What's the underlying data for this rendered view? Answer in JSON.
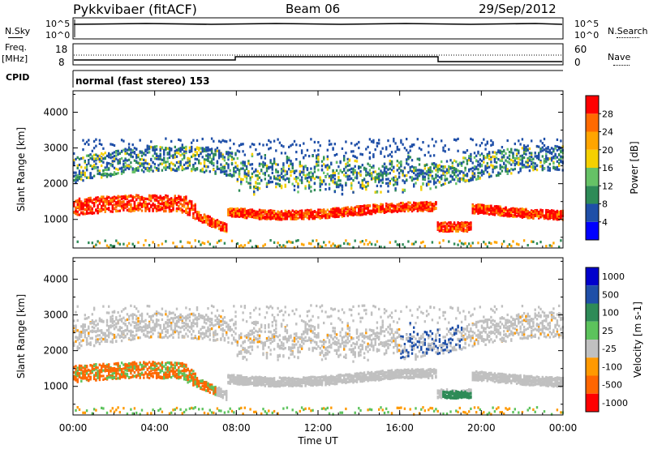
{
  "header": {
    "station": "Pykkvibaer (fitACF)",
    "beam": "Beam 06",
    "date": "29/Sep/2012"
  },
  "status": {
    "nsky_label": "N.Sky",
    "nsky_ticks": [
      "10^5",
      "10^0"
    ],
    "nsearch_label": "N.Search",
    "nsearch_ticks": [
      "10^5",
      "10^0"
    ],
    "freq_label": "Freq.",
    "freq_unit": "[MHz]",
    "freq_ticks": [
      "18",
      "8"
    ],
    "nave_label": "Nave",
    "nave_ticks": [
      "60",
      "0"
    ],
    "cpid_label": "CPID",
    "cpid_text": "normal (fast stereo) 153"
  },
  "colors": {
    "power": [
      "#0000ff",
      "#1f4fa8",
      "#2e8b57",
      "#66c266",
      "#f5d000",
      "#ffa500",
      "#ff6a00",
      "#ff0000"
    ],
    "velocity": [
      "#0000cc",
      "#1f4fa8",
      "#2e8b57",
      "#5cc35c",
      "#c0c0c0",
      "#ff9900",
      "#ff6600",
      "#ff0000"
    ],
    "ground": "#c0c0c0"
  },
  "chart_data": [
    {
      "type": "heatmap",
      "name": "power",
      "ylabel": "Slant Range [km]",
      "y_ticks": [
        "1000",
        "2000",
        "3000",
        "4000"
      ],
      "y_tick_values": [
        1000,
        2000,
        3000,
        4000
      ],
      "ylim": [
        200,
        4600
      ],
      "xlim": [
        0,
        24
      ],
      "colorbar_label": "Power [dB]",
      "colorbar_ticks": [
        "4",
        "8",
        "12",
        "16",
        "20",
        "24",
        "28"
      ],
      "colorbar_range": [
        0,
        32
      ],
      "x_ticks": [
        "00:00",
        "04:00",
        "08:00",
        "12:00",
        "16:00",
        "20:00",
        "00:00"
      ],
      "x_tick_values": [
        0,
        4,
        8,
        12,
        16,
        20,
        24
      ]
    },
    {
      "type": "heatmap",
      "name": "velocity",
      "ylabel": "Slant Range [km]",
      "y_ticks": [
        "1000",
        "2000",
        "3000",
        "4000"
      ],
      "y_tick_values": [
        1000,
        2000,
        3000,
        4000
      ],
      "ylim": [
        200,
        4600
      ],
      "xlim": [
        0,
        24
      ],
      "colorbar_label": "Velocity [m s-1]",
      "colorbar_ticks": [
        "1000",
        "500",
        "100",
        "25",
        "-25",
        "-100",
        "-500",
        "-1000"
      ],
      "xlabel": "Time UT",
      "x_ticks": [
        "00:00",
        "04:00",
        "08:00",
        "12:00",
        "16:00",
        "20:00",
        "00:00"
      ],
      "x_tick_values": [
        0,
        4,
        8,
        12,
        16,
        20,
        24
      ]
    }
  ]
}
